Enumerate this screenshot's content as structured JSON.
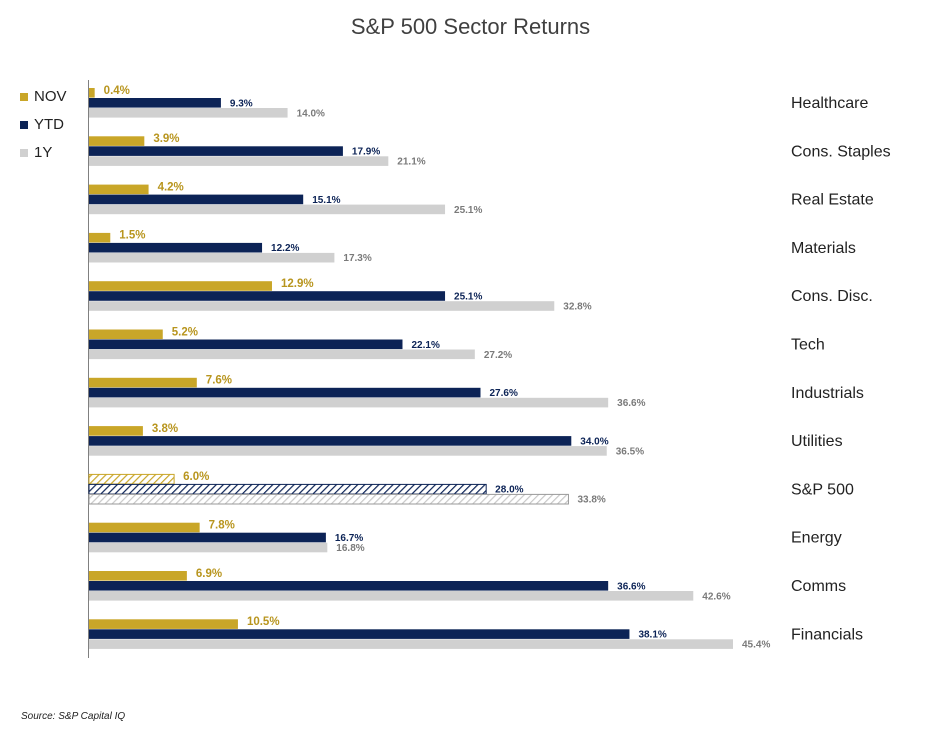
{
  "chart_data": {
    "type": "bar",
    "orientation": "horizontal",
    "title": "S&P 500 Sector Returns",
    "categories": [
      "Healthcare",
      "Cons. Staples",
      "Real Estate",
      "Materials",
      "Cons. Disc.",
      "Tech",
      "Industrials",
      "Utilities",
      "S&P 500",
      "Energy",
      "Comms",
      "Financials"
    ],
    "series": [
      {
        "name": "NOV",
        "color": "#c9a628",
        "values": [
          0.4,
          3.9,
          4.2,
          1.5,
          12.9,
          5.2,
          7.6,
          3.8,
          6.0,
          7.8,
          6.9,
          10.5
        ],
        "labels": [
          "0.4%",
          "3.9%",
          "4.2%",
          "1.5%",
          "12.9%",
          "5.2%",
          "7.6%",
          "3.8%",
          "6.0%",
          "7.8%",
          "6.9%",
          "10.5%"
        ]
      },
      {
        "name": "YTD",
        "color": "#0c2356",
        "values": [
          9.3,
          17.9,
          15.1,
          12.2,
          25.1,
          22.1,
          27.6,
          34.0,
          28.0,
          16.7,
          36.6,
          38.1
        ],
        "labels": [
          "9.3%",
          "17.9%",
          "15.1%",
          "12.2%",
          "25.1%",
          "22.1%",
          "27.6%",
          "34.0%",
          "28.0%",
          "16.7%",
          "36.6%",
          "38.1%"
        ]
      },
      {
        "name": "1Y",
        "color": "#d0d0d0",
        "values": [
          14.0,
          21.1,
          25.1,
          17.3,
          32.8,
          27.2,
          36.6,
          36.5,
          33.8,
          16.8,
          42.6,
          45.4
        ],
        "labels": [
          "14.0%",
          "21.1%",
          "25.1%",
          "17.3%",
          "32.8%",
          "27.2%",
          "36.6%",
          "36.5%",
          "33.8%",
          "16.8%",
          "42.6%",
          "45.4%"
        ]
      }
    ],
    "highlighted_category": "S&P 500",
    "xlim": [
      0,
      50
    ],
    "legend": "top-left",
    "grid": false,
    "source": "Source: S&P Capital IQ"
  }
}
